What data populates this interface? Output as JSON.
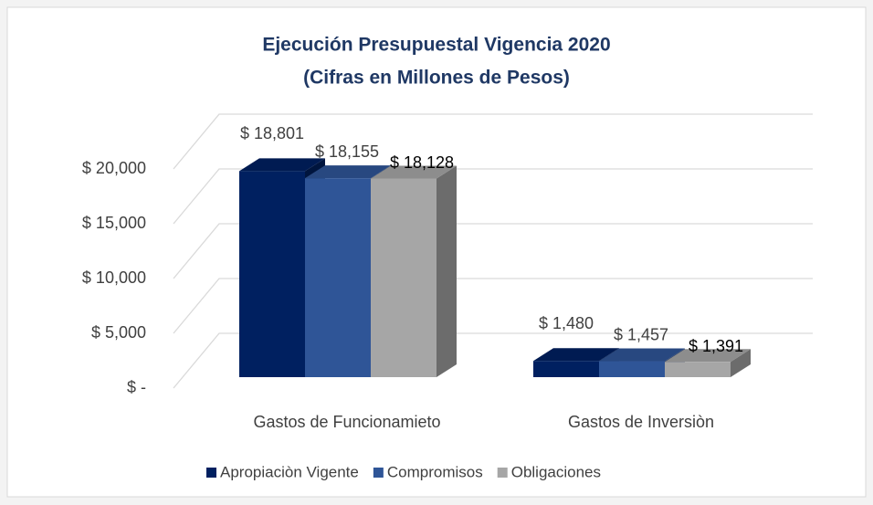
{
  "chart_data": {
    "type": "bar3d",
    "title": "Ejecución Presupuestal  Vigencia 2020",
    "subtitle": "(Cifras en Millones de Pesos)",
    "categories": [
      "Gastos de Funcionamieto",
      "Gastos de Inversiòn"
    ],
    "series": [
      {
        "name": "Apropiaciòn Vigente",
        "color": "#002060",
        "values": [
          18801,
          1480
        ],
        "value_labels": [
          "$ 18,801",
          "$ 1,480"
        ]
      },
      {
        "name": "Compromisos",
        "color": "#2f5597",
        "values": [
          18155,
          1457
        ],
        "value_labels": [
          "$ 18,155",
          "$ 1,457"
        ]
      },
      {
        "name": "Obligaciones",
        "color": "#a6a6a6",
        "values": [
          18128,
          1391
        ],
        "value_labels": [
          "$ 18,128",
          "$ 1,391"
        ]
      }
    ],
    "ylim": [
      0,
      20000
    ],
    "yticks": [
      {
        "value": 0,
        "label": "$ -"
      },
      {
        "value": 5000,
        "label": "$ 5,000"
      },
      {
        "value": 10000,
        "label": "$ 10,000"
      },
      {
        "value": 15000,
        "label": "$ 15,000"
      },
      {
        "value": 20000,
        "label": "$ 20,000"
      }
    ],
    "grid": true,
    "legend": "bottom"
  }
}
